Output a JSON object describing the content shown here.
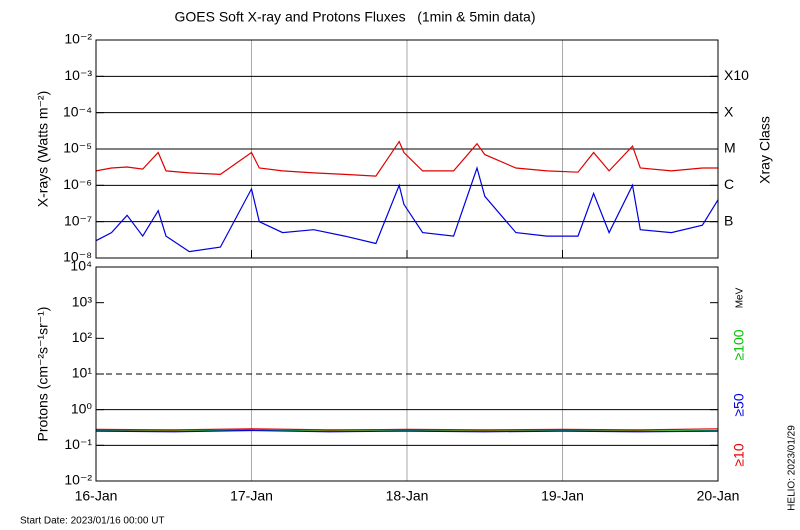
{
  "title": "GOES Soft X-ray and Protons Fluxes   (1min & 5min data)",
  "footer": "Start Date: 2023/01/16 00:00 UT",
  "credit": "HELIO: 2023/01/29",
  "chart_data": [
    {
      "type": "line",
      "log_y": true,
      "grid": true,
      "y_label": "X-rays (Watts m⁻²)",
      "y2_label": "Xray Class",
      "xlim": [
        0,
        4
      ],
      "ylim": [
        1e-08,
        0.01
      ],
      "yticks": [
        {
          "value": 1e-08,
          "label": "10⁻⁸"
        },
        {
          "value": 1e-07,
          "label": "10⁻⁷"
        },
        {
          "value": 1e-06,
          "label": "10⁻⁶"
        },
        {
          "value": 1e-05,
          "label": "10⁻⁵"
        },
        {
          "value": 0.0001,
          "label": "10⁻⁴"
        },
        {
          "value": 0.001,
          "label": "10⁻³"
        },
        {
          "value": 0.01,
          "label": "10⁻²"
        }
      ],
      "y2lim": [
        1e-08,
        0.01
      ],
      "y2ticks": [
        {
          "value": 1e-07,
          "label": "B"
        },
        {
          "value": 1e-06,
          "label": "C"
        },
        {
          "value": 1e-05,
          "label": "M"
        },
        {
          "value": 0.0001,
          "label": "X"
        },
        {
          "value": 0.001,
          "label": "X10"
        }
      ],
      "xticks": [
        {
          "value": 1,
          "label": "17-Jan"
        },
        {
          "value": 2,
          "label": "18-Jan"
        },
        {
          "value": 3,
          "label": "19-Jan"
        }
      ],
      "x": [
        0,
        0.1,
        0.2,
        0.3,
        0.4,
        0.45,
        0.6,
        0.8,
        1.0,
        1.05,
        1.2,
        1.4,
        1.6,
        1.8,
        1.95,
        1.98,
        2.1,
        2.3,
        2.45,
        2.5,
        2.7,
        2.9,
        3.1,
        3.2,
        3.3,
        3.45,
        3.5,
        3.7,
        3.9,
        4.0
      ],
      "series": [
        {
          "color": "#e00000",
          "values": [
            2.5e-06,
            3e-06,
            3.2e-06,
            2.8e-06,
            8e-06,
            2.5e-06,
            2.2e-06,
            2e-06,
            8e-06,
            3e-06,
            2.5e-06,
            2.2e-06,
            2e-06,
            1.8e-06,
            1.6e-05,
            8e-06,
            2.5e-06,
            2.5e-06,
            1.4e-05,
            7e-06,
            3e-06,
            2.5e-06,
            2.3e-06,
            8e-06,
            2.5e-06,
            1.2e-05,
            3e-06,
            2.5e-06,
            3e-06,
            3e-06
          ]
        },
        {
          "color": "#0000e0",
          "values": [
            3e-08,
            5e-08,
            1.5e-07,
            4e-08,
            2e-07,
            4e-08,
            1.5e-08,
            2e-08,
            8e-07,
            1e-07,
            5e-08,
            6e-08,
            4e-08,
            2.5e-08,
            1e-06,
            3e-07,
            5e-08,
            4e-08,
            3e-06,
            5e-07,
            5e-08,
            4e-08,
            4e-08,
            6e-07,
            5e-08,
            1e-06,
            6e-08,
            5e-08,
            8e-08,
            4e-07
          ]
        }
      ]
    },
    {
      "type": "line",
      "log_y": true,
      "y_label": "Protons (cm⁻²s⁻¹sr⁻¹)",
      "legend_title": "MeV",
      "xlim": [
        0,
        4
      ],
      "ylim": [
        0.01,
        10000.0
      ],
      "yticks": [
        {
          "value": 0.01,
          "label": "10⁻²"
        },
        {
          "value": 0.1,
          "label": "10⁻¹"
        },
        {
          "value": 1,
          "label": "10⁰"
        },
        {
          "value": 10,
          "label": "10¹"
        },
        {
          "value": 100,
          "label": "10²"
        },
        {
          "value": 1000,
          "label": "10³"
        },
        {
          "value": 10000,
          "label": "10⁴"
        }
      ],
      "hlines": [
        0.1,
        1
      ],
      "dashed_hline": 10,
      "xticks": [
        {
          "value": 0,
          "label": "16-Jan"
        },
        {
          "value": 1,
          "label": "17-Jan"
        },
        {
          "value": 2,
          "label": "18-Jan"
        },
        {
          "value": 3,
          "label": "19-Jan"
        },
        {
          "value": 4,
          "label": "20-Jan"
        }
      ],
      "x": [
        0,
        0.5,
        1,
        1.5,
        2,
        2.5,
        3,
        3.5,
        4
      ],
      "series": [
        {
          "name": "≥100",
          "color": "#00c000",
          "values": [
            0.26,
            0.25,
            0.27,
            0.25,
            0.26,
            0.25,
            0.26,
            0.25,
            0.26
          ]
        },
        {
          "name": "≥50",
          "color": "#0000e0",
          "values": [
            0.25,
            0.24,
            0.26,
            0.24,
            0.25,
            0.24,
            0.25,
            0.24,
            0.25
          ]
        },
        {
          "name": "≥10",
          "color": "#e00000",
          "values": [
            0.28,
            0.27,
            0.29,
            0.27,
            0.28,
            0.27,
            0.28,
            0.27,
            0.29
          ]
        }
      ]
    }
  ]
}
